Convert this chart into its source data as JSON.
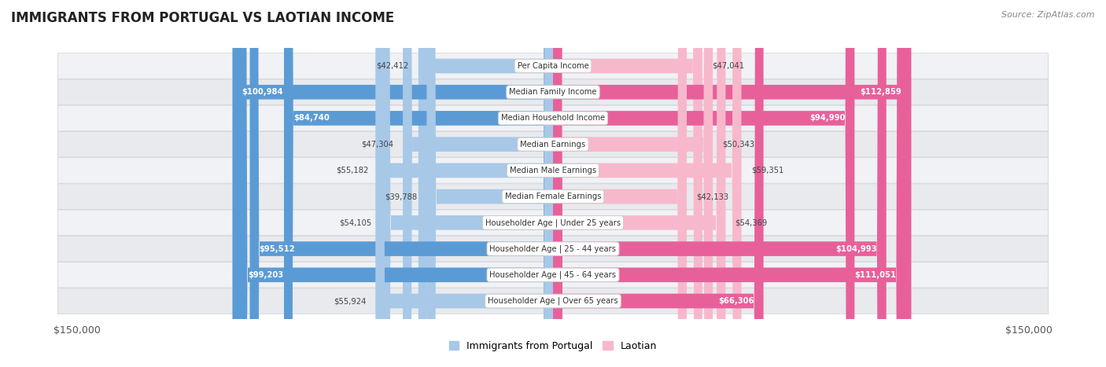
{
  "title": "IMMIGRANTS FROM PORTUGAL VS LAOTIAN INCOME",
  "source": "Source: ZipAtlas.com",
  "categories": [
    "Per Capita Income",
    "Median Family Income",
    "Median Household Income",
    "Median Earnings",
    "Median Male Earnings",
    "Median Female Earnings",
    "Householder Age | Under 25 years",
    "Householder Age | 25 - 44 years",
    "Householder Age | 45 - 64 years",
    "Householder Age | Over 65 years"
  ],
  "portugal_values": [
    42412,
    100984,
    84740,
    47304,
    55182,
    39788,
    54105,
    95512,
    99203,
    55924
  ],
  "laotian_values": [
    47041,
    112859,
    94990,
    50343,
    59351,
    42133,
    54369,
    104993,
    111051,
    66306
  ],
  "portugal_labels": [
    "$42,412",
    "$100,984",
    "$84,740",
    "$47,304",
    "$55,182",
    "$39,788",
    "$54,105",
    "$95,512",
    "$99,203",
    "$55,924"
  ],
  "laotian_labels": [
    "$47,041",
    "$112,859",
    "$94,990",
    "$50,343",
    "$59,351",
    "$42,133",
    "$54,369",
    "$104,993",
    "$111,051",
    "$66,306"
  ],
  "max_value": 150000,
  "portugal_color_light": "#a8c8e8",
  "portugal_color_dark": "#5b9bd5",
  "laotian_color_light": "#f8b8cc",
  "laotian_color_dark": "#e8609a",
  "bar_height": 0.55,
  "legend_portugal": "Immigrants from Portugal",
  "legend_laotian": "Laotian",
  "inside_threshold": 60000
}
